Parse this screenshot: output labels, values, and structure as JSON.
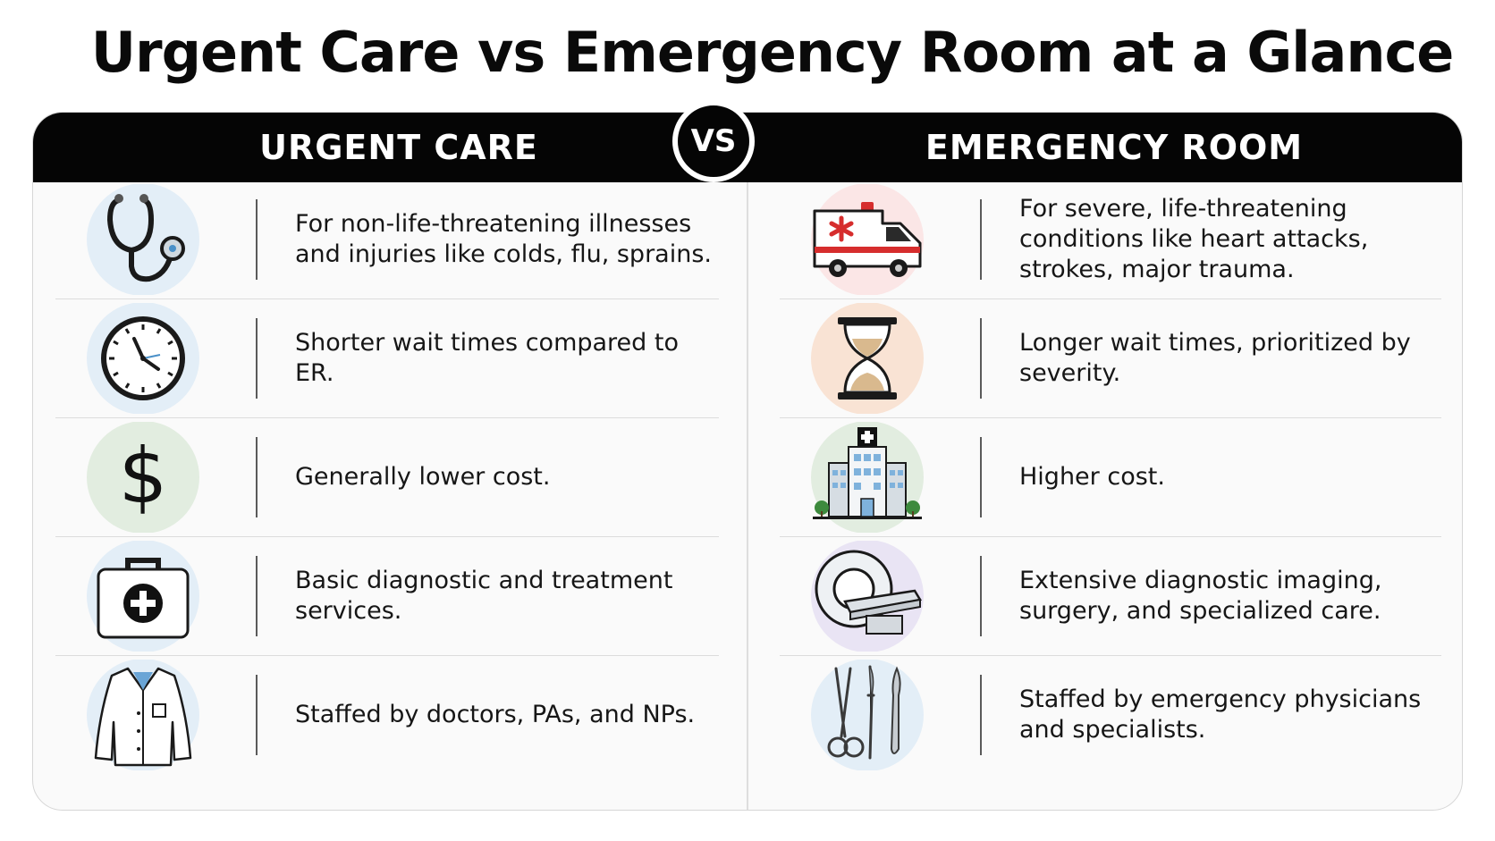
{
  "title": "Urgent Care vs Emergency Room at a Glance",
  "vs_label": "VS",
  "colors": {
    "header": "#050505",
    "background": "#ffffff",
    "card": "#fafafa"
  },
  "left": {
    "heading": "URGENT CARE",
    "rows": [
      {
        "icon": "stethoscope-icon",
        "text": "For non-life-threatening illnesses and injuries like colds, flu, sprains."
      },
      {
        "icon": "clock-icon",
        "text": "Shorter wait times compared to ER."
      },
      {
        "icon": "dollar-sign-icon",
        "text": "Generally lower cost."
      },
      {
        "icon": "first-aid-kit-icon",
        "text": "Basic diagnostic and treatment services."
      },
      {
        "icon": "lab-coat-icon",
        "text": "Staffed by doctors, PAs, and NPs."
      }
    ]
  },
  "right": {
    "heading": "EMERGENCY ROOM",
    "rows": [
      {
        "icon": "ambulance-icon",
        "text": "For severe, life-threatening conditions like heart attacks, strokes, major trauma."
      },
      {
        "icon": "hourglass-icon",
        "text": "Longer wait times, prioritized by severity."
      },
      {
        "icon": "hospital-building-icon",
        "text": "Higher cost."
      },
      {
        "icon": "mri-scanner-icon",
        "text": "Extensive diagnostic imaging, surgery, and specialized care."
      },
      {
        "icon": "surgical-instruments-icon",
        "text": "Staffed by emergency physicians and specialists."
      }
    ]
  }
}
